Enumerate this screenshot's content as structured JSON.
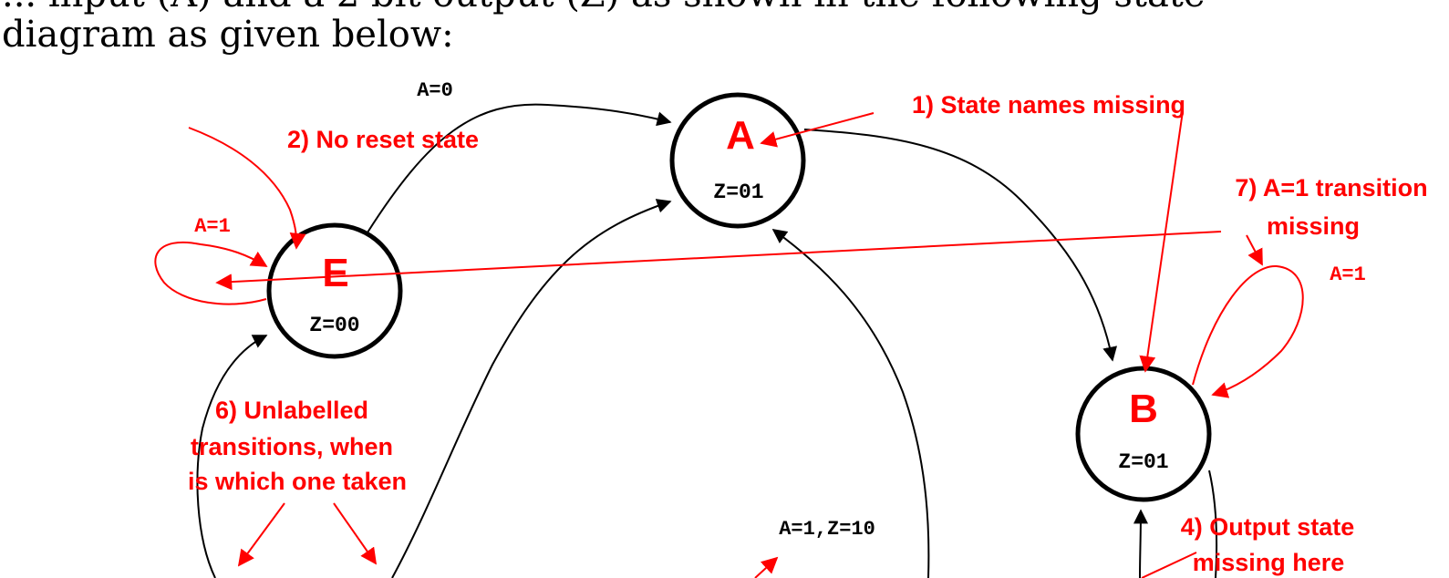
{
  "intro": {
    "line1_partial": "... input (A) and a 2 bit output (Z) as shown in the following state",
    "line2": "diagram as given below:"
  },
  "states": {
    "a": {
      "name": "A",
      "output": "Z=01"
    },
    "e": {
      "name": "E",
      "output": "Z=00"
    },
    "b": {
      "name": "B",
      "output": "Z=01"
    }
  },
  "transitions": {
    "e_to_a": "A=0",
    "e_self": "A=1",
    "b_self": "A=1",
    "to_a_bottom": "A=1,Z=10"
  },
  "annotations": {
    "n1": "1) State names missing",
    "n2": "2) No reset state",
    "n4_line1": "4) Output state",
    "n4_line2": "missing here",
    "n6_line1": "6) Unlabelled",
    "n6_line2": "transitions, when",
    "n6_line3": "is which one taken",
    "n7_line1": "7) A=1 transition",
    "n7_line2": "missing"
  },
  "colors": {
    "annotation": "#ff0000",
    "diagram": "#000000",
    "background": "#ffffff"
  }
}
